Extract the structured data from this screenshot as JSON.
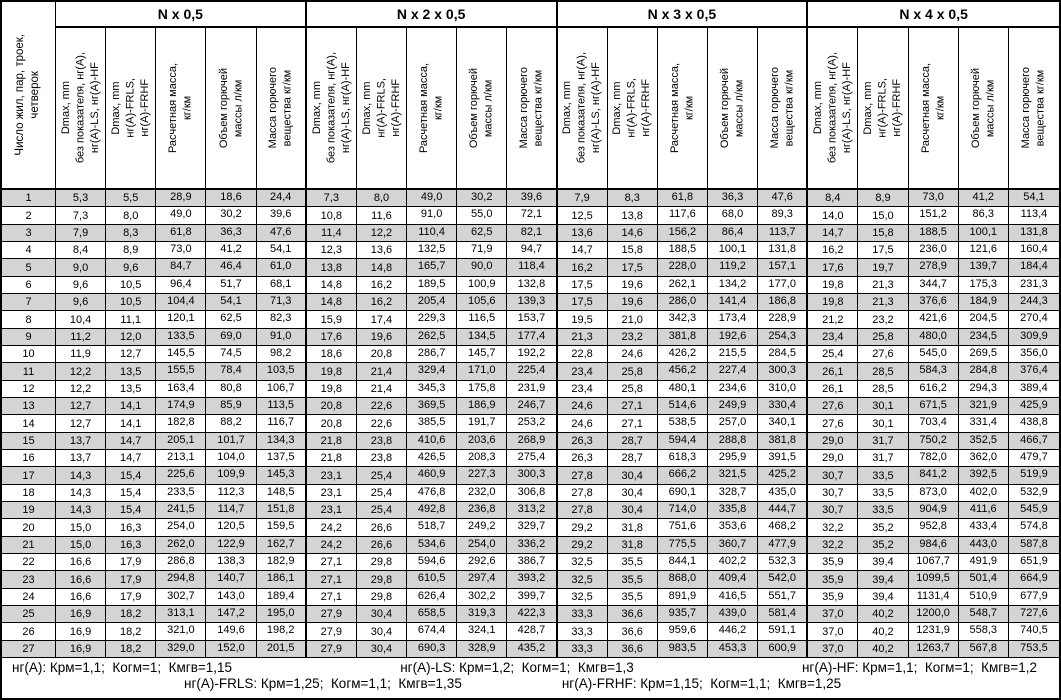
{
  "header": {
    "row_label": "Число жил, пар, троек,\nчетверок",
    "groups": [
      {
        "label": "N x 0,5"
      },
      {
        "label": "N x 2 x 0,5"
      },
      {
        "label": "N x 3 x 0,5"
      },
      {
        "label": "N x 4 x 0,5"
      }
    ],
    "subcolumns": [
      "Dmax, mm\nбез показателя, нг(А),\nнг(А)-LS, нг(А)-HF",
      "Dmax, mm\nнг(А)-FRLS,\nнг(А)-FRHF",
      "Расчетная масса,\nкг/км",
      "Объем горючей\nмассы л/км",
      "Масса горючего\nвещества кг/км"
    ]
  },
  "rows": [
    {
      "n": "1",
      "values": [
        "5,3",
        "5,5",
        "28,9",
        "18,6",
        "24,4",
        "7,3",
        "8,0",
        "49,0",
        "30,2",
        "39,6",
        "7,9",
        "8,3",
        "61,8",
        "36,3",
        "47,6",
        "8,4",
        "8,9",
        "73,0",
        "41,2",
        "54,1"
      ]
    },
    {
      "n": "2",
      "values": [
        "7,3",
        "8,0",
        "49,0",
        "30,2",
        "39,6",
        "10,8",
        "11,6",
        "91,0",
        "55,0",
        "72,1",
        "12,5",
        "13,8",
        "117,6",
        "68,0",
        "89,3",
        "14,0",
        "15,0",
        "151,2",
        "86,3",
        "113,4"
      ]
    },
    {
      "n": "3",
      "values": [
        "7,9",
        "8,3",
        "61,8",
        "36,3",
        "47,6",
        "11,4",
        "12,2",
        "110,4",
        "62,5",
        "82,1",
        "13,6",
        "14,6",
        "156,2",
        "86,4",
        "113,7",
        "14,7",
        "15,8",
        "188,5",
        "100,1",
        "131,8"
      ]
    },
    {
      "n": "4",
      "values": [
        "8,4",
        "8,9",
        "73,0",
        "41,2",
        "54,1",
        "12,3",
        "13,6",
        "132,5",
        "71,9",
        "94,7",
        "14,7",
        "15,8",
        "188,5",
        "100,1",
        "131,8",
        "16,2",
        "17,5",
        "236,0",
        "121,6",
        "160,4"
      ]
    },
    {
      "n": "5",
      "values": [
        "9,0",
        "9,6",
        "84,7",
        "46,4",
        "61,0",
        "13,8",
        "14,8",
        "165,7",
        "90,0",
        "118,4",
        "16,2",
        "17,5",
        "228,0",
        "119,2",
        "157,1",
        "17,6",
        "19,7",
        "278,9",
        "139,7",
        "184,4"
      ]
    },
    {
      "n": "6",
      "values": [
        "9,6",
        "10,5",
        "96,4",
        "51,7",
        "68,1",
        "14,8",
        "16,2",
        "189,5",
        "100,9",
        "132,8",
        "17,5",
        "19,6",
        "262,1",
        "134,2",
        "177,0",
        "19,8",
        "21,3",
        "344,7",
        "175,3",
        "231,3"
      ]
    },
    {
      "n": "7",
      "values": [
        "9,6",
        "10,5",
        "104,4",
        "54,1",
        "71,3",
        "14,8",
        "16,2",
        "205,4",
        "105,6",
        "139,3",
        "17,5",
        "19,6",
        "286,0",
        "141,4",
        "186,8",
        "19,8",
        "21,3",
        "376,6",
        "184,9",
        "244,3"
      ]
    },
    {
      "n": "8",
      "values": [
        "10,4",
        "11,1",
        "120,1",
        "62,5",
        "82,3",
        "15,9",
        "17,4",
        "229,3",
        "116,5",
        "153,7",
        "19,5",
        "21,0",
        "342,3",
        "173,4",
        "228,9",
        "21,2",
        "23,2",
        "421,6",
        "204,5",
        "270,4"
      ]
    },
    {
      "n": "9",
      "values": [
        "11,2",
        "12,0",
        "133,5",
        "69,0",
        "91,0",
        "17,6",
        "19,6",
        "262,5",
        "134,5",
        "177,4",
        "21,3",
        "23,2",
        "381,8",
        "192,6",
        "254,3",
        "23,4",
        "25,8",
        "480,0",
        "234,5",
        "309,9"
      ]
    },
    {
      "n": "10",
      "values": [
        "11,9",
        "12,7",
        "145,5",
        "74,5",
        "98,2",
        "18,6",
        "20,8",
        "286,7",
        "145,7",
        "192,2",
        "22,8",
        "24,6",
        "426,2",
        "215,5",
        "284,5",
        "25,4",
        "27,6",
        "545,0",
        "269,5",
        "356,0"
      ]
    },
    {
      "n": "11",
      "values": [
        "12,2",
        "13,5",
        "155,5",
        "78,4",
        "103,5",
        "19,8",
        "21,4",
        "329,4",
        "171,0",
        "225,4",
        "23,4",
        "25,8",
        "456,2",
        "227,4",
        "300,3",
        "26,1",
        "28,5",
        "584,3",
        "284,8",
        "376,4"
      ]
    },
    {
      "n": "12",
      "values": [
        "12,2",
        "13,5",
        "163,4",
        "80,8",
        "106,7",
        "19,8",
        "21,4",
        "345,3",
        "175,8",
        "231,9",
        "23,4",
        "25,8",
        "480,1",
        "234,6",
        "310,0",
        "26,1",
        "28,5",
        "616,2",
        "294,3",
        "389,4"
      ]
    },
    {
      "n": "13",
      "values": [
        "12,7",
        "14,1",
        "174,9",
        "85,9",
        "113,5",
        "20,8",
        "22,6",
        "369,5",
        "186,9",
        "246,7",
        "24,6",
        "27,1",
        "514,6",
        "249,9",
        "330,4",
        "27,6",
        "30,1",
        "671,5",
        "321,9",
        "425,9"
      ]
    },
    {
      "n": "14",
      "values": [
        "12,7",
        "14,1",
        "182,8",
        "88,2",
        "116,7",
        "20,8",
        "22,6",
        "385,5",
        "191,7",
        "253,2",
        "24,6",
        "27,1",
        "538,5",
        "257,0",
        "340,1",
        "27,6",
        "30,1",
        "703,4",
        "331,4",
        "438,8"
      ]
    },
    {
      "n": "15",
      "values": [
        "13,7",
        "14,7",
        "205,1",
        "101,7",
        "134,3",
        "21,8",
        "23,8",
        "410,6",
        "203,6",
        "268,9",
        "26,3",
        "28,7",
        "594,4",
        "288,8",
        "381,8",
        "29,0",
        "31,7",
        "750,2",
        "352,5",
        "466,7"
      ]
    },
    {
      "n": "16",
      "values": [
        "13,7",
        "14,7",
        "213,1",
        "104,0",
        "137,5",
        "21,8",
        "23,8",
        "426,5",
        "208,3",
        "275,4",
        "26,3",
        "28,7",
        "618,3",
        "295,9",
        "391,5",
        "29,0",
        "31,7",
        "782,0",
        "362,0",
        "479,7"
      ]
    },
    {
      "n": "17",
      "values": [
        "14,3",
        "15,4",
        "225,6",
        "109,9",
        "145,3",
        "23,1",
        "25,4",
        "460,9",
        "227,3",
        "300,3",
        "27,8",
        "30,4",
        "666,2",
        "321,5",
        "425,2",
        "30,7",
        "33,5",
        "841,2",
        "392,5",
        "519,9"
      ]
    },
    {
      "n": "18",
      "values": [
        "14,3",
        "15,4",
        "233,5",
        "112,3",
        "148,5",
        "23,1",
        "25,4",
        "476,8",
        "232,0",
        "306,8",
        "27,8",
        "30,4",
        "690,1",
        "328,7",
        "435,0",
        "30,7",
        "33,5",
        "873,0",
        "402,0",
        "532,9"
      ]
    },
    {
      "n": "19",
      "values": [
        "14,3",
        "15,4",
        "241,5",
        "114,7",
        "151,8",
        "23,1",
        "25,4",
        "492,8",
        "236,8",
        "313,2",
        "27,8",
        "30,4",
        "714,0",
        "335,8",
        "444,7",
        "30,7",
        "33,5",
        "904,9",
        "411,6",
        "545,9"
      ]
    },
    {
      "n": "20",
      "values": [
        "15,0",
        "16,3",
        "254,0",
        "120,5",
        "159,5",
        "24,2",
        "26,6",
        "518,7",
        "249,2",
        "329,7",
        "29,2",
        "31,8",
        "751,6",
        "353,6",
        "468,2",
        "32,2",
        "35,2",
        "952,8",
        "433,4",
        "574,8"
      ]
    },
    {
      "n": "21",
      "values": [
        "15,0",
        "16,3",
        "262,0",
        "122,9",
        "162,7",
        "24,2",
        "26,6",
        "534,6",
        "254,0",
        "336,2",
        "29,2",
        "31,8",
        "775,5",
        "360,7",
        "477,9",
        "32,2",
        "35,2",
        "984,6",
        "443,0",
        "587,8"
      ]
    },
    {
      "n": "22",
      "values": [
        "16,6",
        "17,9",
        "286,8",
        "138,3",
        "182,9",
        "27,1",
        "29,8",
        "594,6",
        "292,6",
        "386,7",
        "32,5",
        "35,5",
        "844,1",
        "402,2",
        "532,3",
        "35,9",
        "39,4",
        "1067,7",
        "491,9",
        "651,9"
      ]
    },
    {
      "n": "23",
      "values": [
        "16,6",
        "17,9",
        "294,8",
        "140,7",
        "186,1",
        "27,1",
        "29,8",
        "610,5",
        "297,4",
        "393,2",
        "32,5",
        "35,5",
        "868,0",
        "409,4",
        "542,0",
        "35,9",
        "39,4",
        "1099,5",
        "501,4",
        "664,9"
      ]
    },
    {
      "n": "24",
      "values": [
        "16,6",
        "17,9",
        "302,7",
        "143,0",
        "189,4",
        "27,1",
        "29,8",
        "626,4",
        "302,2",
        "399,7",
        "32,5",
        "35,5",
        "891,9",
        "416,5",
        "551,7",
        "35,9",
        "39,4",
        "1131,4",
        "510,9",
        "677,9"
      ]
    },
    {
      "n": "25",
      "values": [
        "16,9",
        "18,2",
        "313,1",
        "147,2",
        "195,0",
        "27,9",
        "30,4",
        "658,5",
        "319,3",
        "422,3",
        "33,3",
        "36,6",
        "935,7",
        "439,0",
        "581,4",
        "37,0",
        "40,2",
        "1200,0",
        "548,7",
        "727,6"
      ]
    },
    {
      "n": "26",
      "values": [
        "16,9",
        "18,2",
        "321,0",
        "149,6",
        "198,2",
        "27,9",
        "30,4",
        "674,4",
        "324,1",
        "428,7",
        "33,3",
        "36,6",
        "959,6",
        "446,2",
        "591,1",
        "37,0",
        "40,2",
        "1231,9",
        "558,3",
        "740,5"
      ]
    },
    {
      "n": "27",
      "values": [
        "16,9",
        "18,2",
        "329,0",
        "152,0",
        "201,5",
        "27,9",
        "30,4",
        "690,3",
        "328,9",
        "435,2",
        "33,3",
        "36,6",
        "983,5",
        "453,3",
        "600,9",
        "37,0",
        "40,2",
        "1263,7",
        "567,8",
        "753,5"
      ]
    }
  ],
  "footer": {
    "line1": [
      "нг(А): Крм=1,1;  Когм=1;  Кмгв=1,15",
      "нг(А)-LS: Крм=1,2;  Когм=1;  Кмгв=1,3",
      "нг(А)-HF: Крм=1,1;  Когм=1;  Кмгв=1,2"
    ],
    "line2": [
      "нг(А)-FRLS: Крм=1,25;  Когм=1,1;  Кмгв=1,35",
      "нг(А)-FRHF: Крм=1,15;  Когм=1,1;  Кмгв=1,25"
    ]
  },
  "colors": {
    "stripe": "#d4d4d4",
    "border": "#000000",
    "background": "#ffffff"
  }
}
